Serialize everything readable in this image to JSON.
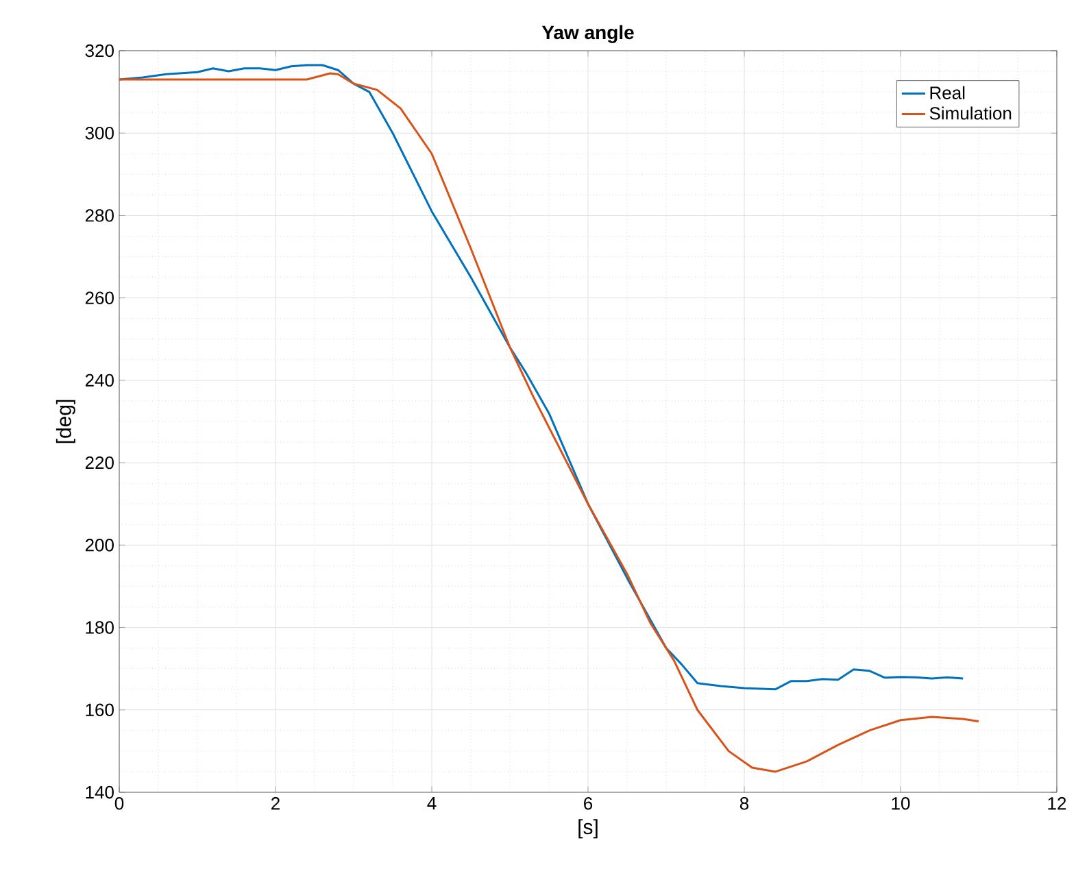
{
  "chart_data": {
    "type": "line",
    "title": "Yaw angle",
    "xlabel": "[s]",
    "ylabel": "[deg]",
    "xlim": [
      0,
      12
    ],
    "xticks": [
      0,
      2,
      4,
      6,
      8,
      10,
      12
    ],
    "ylim": [
      140,
      320
    ],
    "yticks": [
      140,
      160,
      180,
      200,
      220,
      240,
      260,
      280,
      300,
      320
    ],
    "grid": true,
    "legend": "top right",
    "line_style": "solid",
    "marker": "none",
    "series": [
      {
        "name": "Real",
        "color": "#0072bd",
        "x": [
          0,
          0.3,
          0.6,
          1.0,
          1.2,
          1.4,
          1.6,
          1.8,
          2.0,
          2.2,
          2.4,
          2.6,
          2.8,
          3.0,
          3.2,
          3.5,
          4.0,
          4.5,
          5.0,
          5.2,
          5.5,
          6.0,
          6.5,
          7.0,
          7.2,
          7.4,
          7.7,
          8.0,
          8.4,
          8.6,
          8.8,
          9.0,
          9.2,
          9.4,
          9.6,
          9.8,
          10.0,
          10.2,
          10.4,
          10.6,
          10.8
        ],
        "values": [
          313,
          313.5,
          314.3,
          314.8,
          315.7,
          315,
          315.7,
          315.7,
          315.3,
          316.2,
          316.5,
          316.5,
          315.3,
          312,
          310,
          300,
          281,
          265,
          248,
          242,
          232,
          210,
          192,
          175,
          171,
          166.5,
          165.8,
          165.3,
          165,
          167,
          167,
          167.5,
          167.3,
          169.8,
          169.5,
          167.8,
          168,
          167.9,
          167.6,
          167.9,
          167.6
        ]
      },
      {
        "name": "Simulation",
        "color": "#d95319",
        "x": [
          0,
          1.0,
          2.0,
          2.4,
          2.5,
          2.7,
          2.8,
          3.0,
          3.3,
          3.6,
          4.0,
          4.5,
          5.0,
          5.3,
          6.0,
          6.5,
          6.8,
          7.1,
          7.4,
          7.8,
          8.1,
          8.4,
          8.8,
          9.2,
          9.6,
          10.0,
          10.4,
          10.8,
          11.0
        ],
        "values": [
          313,
          313,
          313,
          313,
          313.5,
          314.5,
          314.3,
          312,
          310.5,
          306,
          295,
          272,
          248,
          236,
          210,
          193,
          181,
          172,
          160,
          150,
          146,
          145,
          147.5,
          151.5,
          155,
          157.5,
          158.3,
          157.8,
          157.2
        ]
      }
    ]
  }
}
